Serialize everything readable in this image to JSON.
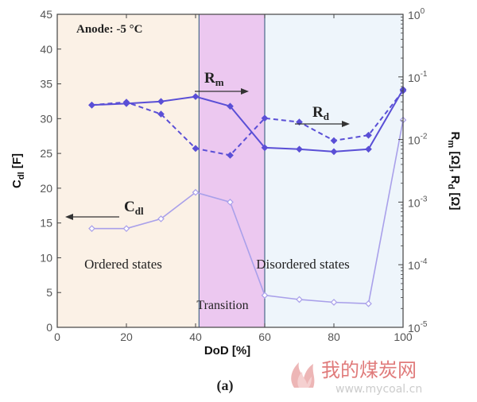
{
  "chart_data": {
    "type": "line",
    "annotation_condition": "Anode: -5 °C",
    "xlabel": "DoD [%]",
    "ylabel_left": {
      "main": "C",
      "sub": "dl",
      "rest": " [F]"
    },
    "ylabel_right": {
      "m": "m",
      "mid": " [Ω], R",
      "d": "d",
      "rest": " [Ω]"
    },
    "xlim": [
      0,
      100
    ],
    "ylim_left": [
      0,
      45
    ],
    "ylim_right": [
      1e-05,
      1
    ],
    "y_right_scale": "log",
    "x_ticks": [
      "0",
      "20",
      "40",
      "60",
      "80",
      "100"
    ],
    "y_left_ticks": [
      "0",
      "5",
      "10",
      "15",
      "20",
      "25",
      "30",
      "35",
      "40",
      "45"
    ],
    "y_right_ticks": [
      {
        "base": "10",
        "exp": "-5"
      },
      {
        "base": "10",
        "exp": "-4"
      },
      {
        "base": "10",
        "exp": "-3"
      },
      {
        "base": "10",
        "exp": "-2"
      },
      {
        "base": "10",
        "exp": "-1"
      },
      {
        "base": "10",
        "exp": "0"
      }
    ],
    "regions": [
      {
        "label": "Ordered states",
        "x_range": [
          0,
          41
        ],
        "color": "#fbf1e6"
      },
      {
        "label": "Transition",
        "x_range": [
          41,
          60
        ],
        "color": "#ecc8f0"
      },
      {
        "label": "Disordered states",
        "x_range": [
          60,
          100
        ],
        "color": "#eef5fb"
      }
    ],
    "series_labels": {
      "cdl": {
        "main": "C",
        "sub": "dl"
      },
      "rm": {
        "main": "R",
        "sub": "m"
      },
      "rd": {
        "main": "R",
        "sub": "d"
      }
    },
    "series": [
      {
        "name": "Cdl",
        "axis": "left",
        "style": "solid-light",
        "color": "#a9a0ea",
        "x": [
          10,
          20,
          30,
          40,
          50,
          60,
          70,
          80,
          90,
          100
        ],
        "y": [
          14.2,
          14.2,
          15.6,
          19.4,
          18.0,
          4.6,
          4.0,
          3.6,
          3.4,
          29.8
        ]
      },
      {
        "name": "Rm",
        "axis": "right",
        "style": "solid",
        "color": "#5a4fd6",
        "x": [
          10,
          20,
          30,
          40,
          50,
          60,
          70,
          80,
          90,
          100
        ],
        "y": [
          0.0355,
          0.0375,
          0.0405,
          0.0485,
          0.034,
          0.0074,
          0.007,
          0.0064,
          0.007,
          0.063
        ]
      },
      {
        "name": "Rd",
        "axis": "right",
        "style": "dashed",
        "color": "#5a4fd6",
        "x": [
          10,
          20,
          30,
          40,
          50,
          60,
          70,
          80,
          90,
          100
        ],
        "y": [
          0.0355,
          0.0395,
          0.0255,
          0.0072,
          0.0056,
          0.0219,
          0.019,
          0.0096,
          0.0117,
          0.06
        ]
      }
    ]
  },
  "caption": "(a)",
  "watermark": {
    "text": "我的煤炭网",
    "url": "www.mycoal.cn",
    "colors": {
      "main": "#e07b7b",
      "url": "#cccccc"
    }
  }
}
